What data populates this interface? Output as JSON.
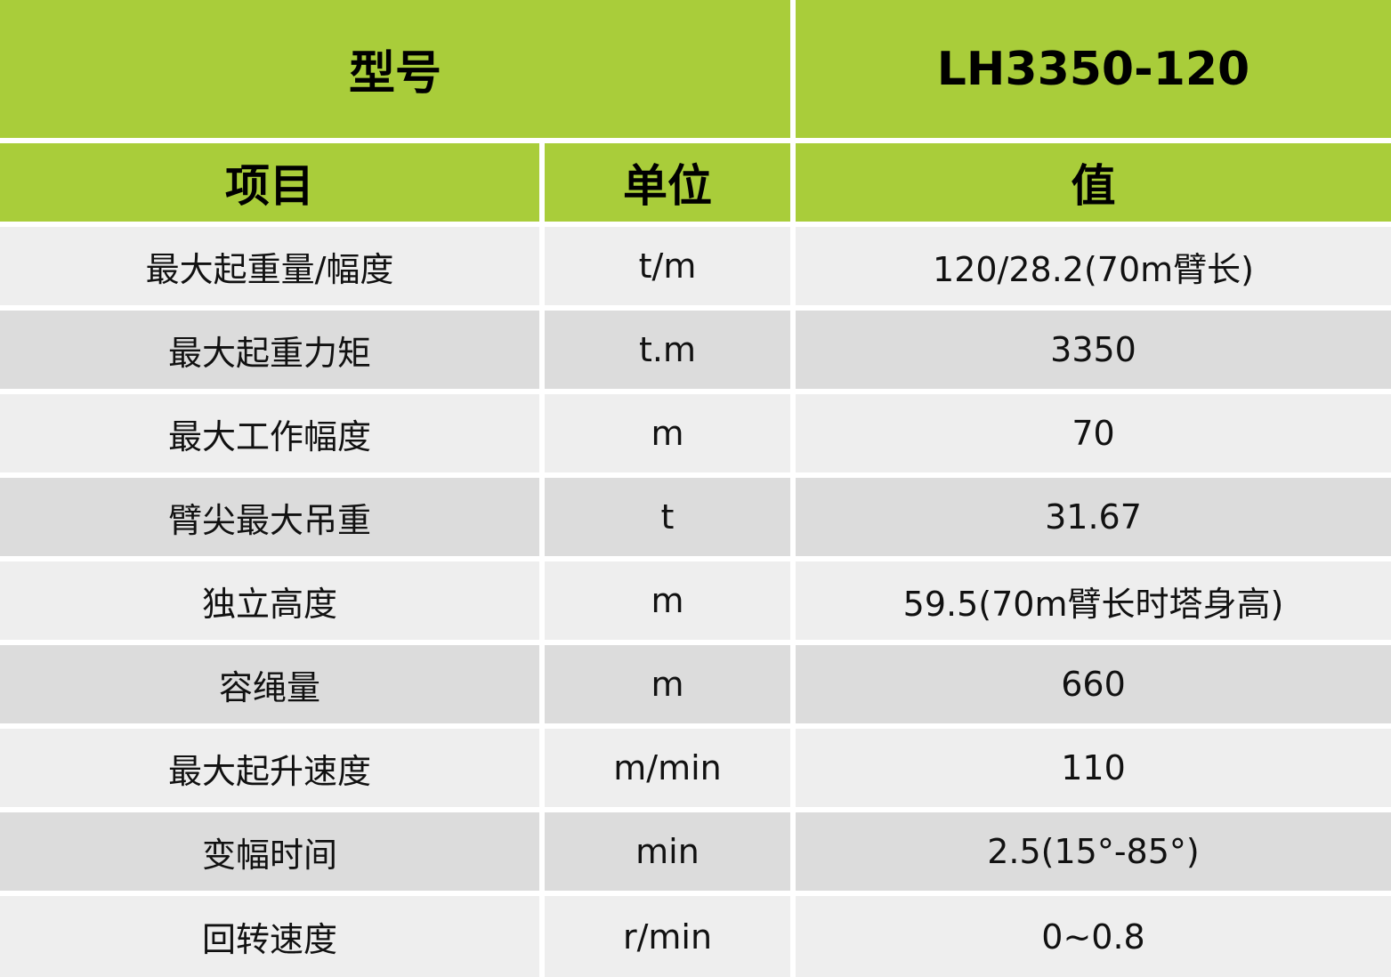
{
  "header": {
    "model_label": "型号",
    "model_value": "LH3350-120"
  },
  "columns": [
    "项目",
    "单位",
    "值"
  ],
  "rows": [
    {
      "item": "最大起重量/幅度",
      "unit": "t/m",
      "value": "120/28.2(70m臂长)"
    },
    {
      "item": "最大起重力矩",
      "unit": "t.m",
      "value": "3350"
    },
    {
      "item": "最大工作幅度",
      "unit": "m",
      "value": "70"
    },
    {
      "item": "臂尖最大吊重",
      "unit": "t",
      "value": "31.67"
    },
    {
      "item": "独立高度",
      "unit": "m",
      "value": "59.5(70m臂长时塔身高)"
    },
    {
      "item": "容绳量",
      "unit": "m",
      "value": "660"
    },
    {
      "item": "最大起升速度",
      "unit": "m/min",
      "value": "110"
    },
    {
      "item": "变幅时间",
      "unit": "min",
      "value": "2.5(15°-85°)"
    },
    {
      "item": "回转速度",
      "unit": "r/min",
      "value": "0~0.8"
    }
  ],
  "colors": {
    "header_green": "#a9cd3a",
    "row_light": "#eeeeee",
    "row_dark": "#dcdcdc"
  }
}
